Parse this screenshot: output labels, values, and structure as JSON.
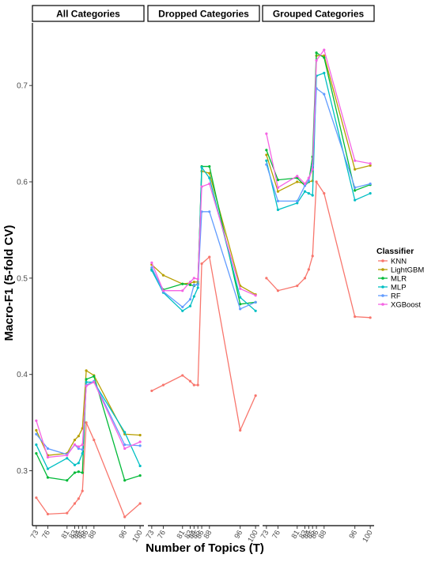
{
  "chart_data": {
    "type": "line",
    "xlabel": "Number of Topics (T)",
    "ylabel": "Macro-F1 (5-fold CV)",
    "x": [
      73,
      76,
      81,
      83,
      84,
      85,
      86,
      88,
      96,
      100
    ],
    "x_tick_labels": [
      "73",
      "76",
      "81",
      "83",
      "84",
      "85",
      "86",
      "88",
      "96",
      "100"
    ],
    "xlim": [
      72,
      101
    ],
    "ylim": [
      0.243,
      0.765
    ],
    "y_ticks": [
      0.3,
      0.4,
      0.5,
      0.6,
      0.7
    ],
    "y_tick_labels": [
      "0.3",
      "0.4",
      "0.5",
      "0.6",
      "0.7"
    ],
    "grid": false,
    "legend": {
      "title": "Classifier",
      "position": "right"
    },
    "facets": [
      {
        "title": "All Categories",
        "series": [
          {
            "name": "KNN",
            "color": "#F8766D",
            "values": [
              0.272,
              0.255,
              0.256,
              0.266,
              0.271,
              0.279,
              0.35,
              0.332,
              0.252,
              0.266
            ]
          },
          {
            "name": "LightGBM",
            "color": "#B79F00",
            "values": [
              0.342,
              0.316,
              0.318,
              0.332,
              0.336,
              0.344,
              0.404,
              0.399,
              0.338,
              0.337
            ]
          },
          {
            "name": "MLR",
            "color": "#00BA38",
            "values": [
              0.318,
              0.293,
              0.29,
              0.298,
              0.299,
              0.298,
              0.395,
              0.398,
              0.29,
              0.295
            ]
          },
          {
            "name": "MLP",
            "color": "#00BFC4",
            "values": [
              0.327,
              0.302,
              0.313,
              0.306,
              0.308,
              0.318,
              0.392,
              0.392,
              0.34,
              0.305
            ]
          },
          {
            "name": "RF",
            "color": "#619CFF",
            "values": [
              0.338,
              0.323,
              0.317,
              0.327,
              0.323,
              0.322,
              0.389,
              0.393,
              0.327,
              0.326
            ]
          },
          {
            "name": "XGBoost",
            "color": "#F564E3",
            "values": [
              0.352,
              0.314,
              0.316,
              0.327,
              0.325,
              0.327,
              0.388,
              0.392,
              0.323,
              0.33
            ]
          }
        ]
      },
      {
        "title": "Dropped Categories",
        "series": [
          {
            "name": "KNN",
            "color": "#F8766D",
            "values": [
              0.383,
              0.389,
              0.399,
              0.393,
              0.389,
              0.389,
              0.515,
              0.522,
              0.342,
              0.378
            ]
          },
          {
            "name": "LightGBM",
            "color": "#B79F00",
            "values": [
              0.514,
              0.503,
              0.494,
              0.495,
              0.496,
              0.496,
              0.611,
              0.609,
              0.492,
              0.483
            ]
          },
          {
            "name": "MLR",
            "color": "#00BA38",
            "values": [
              0.509,
              0.488,
              0.494,
              0.493,
              0.492,
              0.494,
              0.616,
              0.616,
              0.473,
              0.475
            ]
          },
          {
            "name": "MLP",
            "color": "#00BFC4",
            "values": [
              0.508,
              0.485,
              0.466,
              0.471,
              0.481,
              0.49,
              0.615,
              0.604,
              0.48,
              0.466
            ]
          },
          {
            "name": "RF",
            "color": "#619CFF",
            "values": [
              0.511,
              0.486,
              0.47,
              0.478,
              0.493,
              0.493,
              0.569,
              0.569,
              0.468,
              0.475
            ]
          },
          {
            "name": "XGBoost",
            "color": "#F564E3",
            "values": [
              0.516,
              0.487,
              0.487,
              0.496,
              0.5,
              0.499,
              0.595,
              0.598,
              0.489,
              0.482
            ]
          }
        ]
      },
      {
        "title": "Grouped Categories",
        "series": [
          {
            "name": "KNN",
            "color": "#F8766D",
            "values": [
              0.5,
              0.487,
              0.492,
              0.5,
              0.509,
              0.523,
              0.6,
              0.588,
              0.46,
              0.459
            ]
          },
          {
            "name": "LightGBM",
            "color": "#B79F00",
            "values": [
              0.628,
              0.59,
              0.6,
              0.598,
              0.6,
              0.601,
              0.731,
              0.731,
              0.613,
              0.617
            ]
          },
          {
            "name": "MLR",
            "color": "#00BA38",
            "values": [
              0.633,
              0.602,
              0.604,
              0.596,
              0.6,
              0.626,
              0.734,
              0.729,
              0.591,
              0.597
            ]
          },
          {
            "name": "MLP",
            "color": "#00BFC4",
            "values": [
              0.622,
              0.571,
              0.578,
              0.59,
              0.588,
              0.586,
              0.71,
              0.713,
              0.581,
              0.588
            ]
          },
          {
            "name": "RF",
            "color": "#619CFF",
            "values": [
              0.618,
              0.58,
              0.58,
              0.596,
              0.601,
              0.617,
              0.697,
              0.691,
              0.594,
              0.598
            ]
          },
          {
            "name": "XGBoost",
            "color": "#F564E3",
            "values": [
              0.65,
              0.594,
              0.606,
              0.598,
              0.604,
              0.613,
              0.726,
              0.737,
              0.622,
              0.619
            ]
          }
        ]
      }
    ]
  }
}
